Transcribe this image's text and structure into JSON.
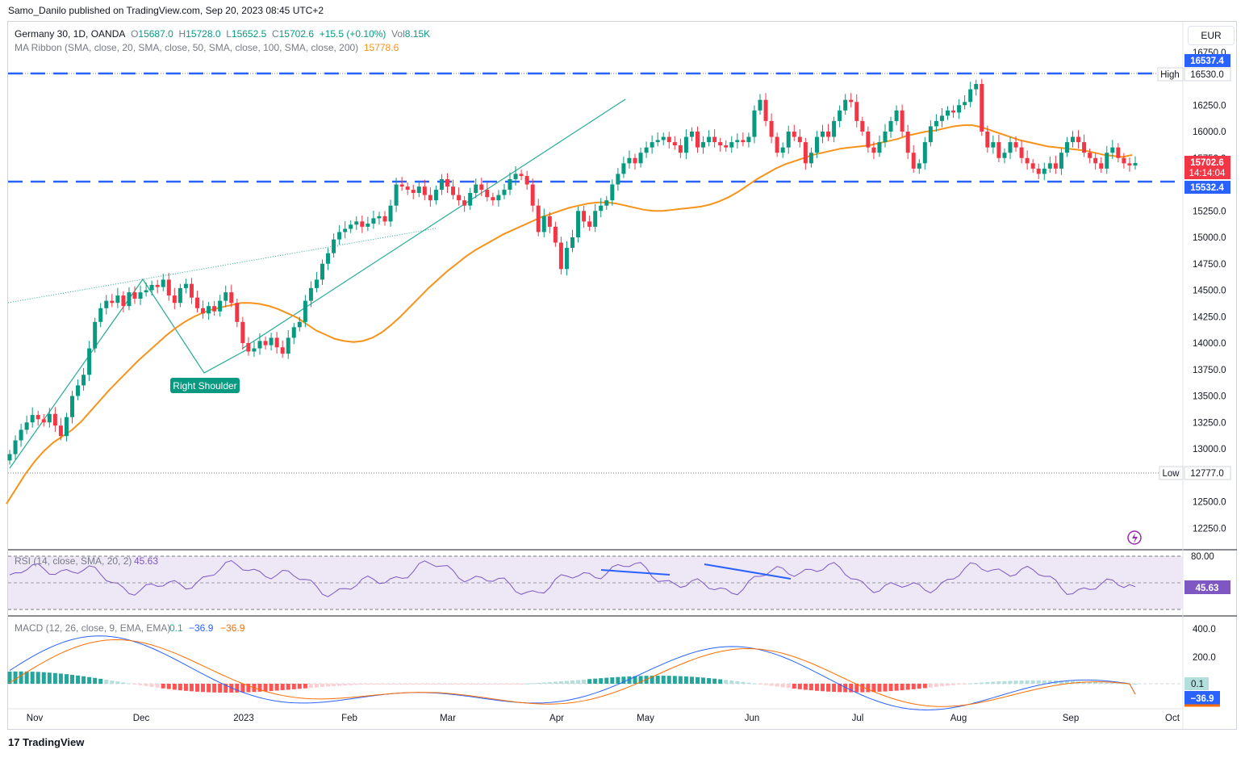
{
  "header": {
    "credit": "Samo_Danilo published on TradingView.com, Sep 20, 2023 08:45 UTC+2"
  },
  "main_legend": {
    "symbol": "Germany 30, 1D, OANDA",
    "o_label": "O",
    "o": "15687.0",
    "h_label": "H",
    "h": "15728.0",
    "l_label": "L",
    "l": "15652.5",
    "c_label": "C",
    "c": "15702.6",
    "change": "+15.5 (+0.10%)",
    "vol_label": "Vol",
    "vol": "8.15K"
  },
  "ma_legend": {
    "label": "MA Ribbon (SMA, close, 20, SMA, close, 50, SMA, close, 100, SMA, close, 200)",
    "value": "15778.6"
  },
  "currency": "EUR",
  "price_axis": {
    "ticks": [
      "16750.0",
      "16250.0",
      "16000.0",
      "15750.0",
      "15250.0",
      "15000.0",
      "14750.0",
      "14500.0",
      "14250.0",
      "14000.0",
      "13750.0",
      "13500.0",
      "13250.0",
      "13000.0",
      "12500.0",
      "12250.0"
    ],
    "high_label": "High",
    "high_value": "16530.0",
    "low_label": "Low",
    "low_value": "12777.0",
    "resistance_label": "16537.4",
    "support_label": "15532.4",
    "last_price": "15702.6",
    "countdown": "14:14:04"
  },
  "annotation": {
    "right_shoulder": "Right Shoulder"
  },
  "rsi_legend": {
    "label": "RSI (14, close, SMA, 20, 2)",
    "value": "45.63"
  },
  "rsi_axis": {
    "top": "80.00",
    "badge": "45.63"
  },
  "macd_legend": {
    "label": "MACD (12, 26, close, 9, EMA, EMA)",
    "hist": "0.1",
    "macd": "−36.9",
    "signal": "−36.9"
  },
  "macd_axis": {
    "t400": "400.0",
    "t200": "200.0",
    "badge_hist": "0.1",
    "badge_macd": "−36.9"
  },
  "time_axis": [
    "Nov",
    "Dec",
    "2023",
    "Feb",
    "Mar",
    "Apr",
    "May",
    "Jun",
    "Jul",
    "Aug",
    "Sep",
    "Oct"
  ],
  "footer": {
    "brand": "TradingView",
    "logo_glyph": "17"
  },
  "colors": {
    "up": "#089981",
    "down": "#f23645",
    "ma": "#f7931a",
    "level_line": "#2962ff",
    "trendline": "#22ab94",
    "rsi": "#7e57c2",
    "rsi_band": "#ede7f6",
    "macd": "#2962ff",
    "signal": "#ff6d00"
  },
  "chart_data": {
    "type": "candlestick",
    "symbol": "Germany 30, 1D, OANDA",
    "y_range": [
      12100,
      16850
    ],
    "levels": {
      "resistance": 16537.4,
      "support": 15532.4,
      "high": 16530.0,
      "low": 12777.0
    },
    "closes": [
      12950,
      13080,
      13180,
      13250,
      13320,
      13280,
      13250,
      13330,
      13220,
      13120,
      13300,
      13500,
      13600,
      13700,
      13950,
      14200,
      14330,
      14400,
      14380,
      14450,
      14350,
      14480,
      14420,
      14480,
      14500,
      14550,
      14530,
      14600,
      14450,
      14380,
      14520,
      14560,
      14430,
      14330,
      14280,
      14350,
      14300,
      14400,
      14480,
      14380,
      14200,
      14000,
      13920,
      13950,
      14020,
      13980,
      14050,
      13960,
      13900,
      14050,
      14150,
      14200,
      14400,
      14520,
      14600,
      14750,
      14850,
      14980,
      15050,
      15080,
      15120,
      15150,
      15100,
      15130,
      15180,
      15200,
      15150,
      15300,
      15500,
      15480,
      15450,
      15420,
      15480,
      15400,
      15350,
      15450,
      15550,
      15480,
      15400,
      15350,
      15300,
      15420,
      15500,
      15450,
      15380,
      15350,
      15400,
      15450,
      15550,
      15600,
      15580,
      15500,
      15300,
      15050,
      15200,
      15100,
      14950,
      14700,
      14900,
      15000,
      15250,
      15150,
      15100,
      15250,
      15300,
      15350,
      15500,
      15600,
      15700,
      15750,
      15700,
      15800,
      15850,
      15900,
      15920,
      15950,
      15900,
      15870,
      15800,
      15950,
      16000,
      15850,
      15900,
      15950,
      15900,
      15870,
      15850,
      15900,
      15920,
      15900,
      15950,
      16200,
      16300,
      16100,
      15950,
      15800,
      15850,
      16000,
      15950,
      15900,
      15700,
      15800,
      15950,
      16000,
      15950,
      16100,
      16200,
      16300,
      16280,
      16100,
      16000,
      15850,
      15800,
      15900,
      16000,
      16100,
      16200,
      16000,
      15800,
      15650,
      15700,
      15900,
      16050,
      16100,
      16150,
      16200,
      16180,
      16250,
      16280,
      16400,
      16450,
      16000,
      15850,
      15900,
      15750,
      15800,
      15900,
      15850,
      15750,
      15700,
      15650,
      15600,
      15650,
      15700,
      15650,
      15800,
      15900,
      15950,
      15900,
      15800,
      15750,
      15700,
      15650,
      15800,
      15850,
      15750,
      15700,
      15680,
      15702.6
    ],
    "ma_values": [
      12480,
      12620,
      12760,
      12880,
      12980,
      13060,
      13120,
      13180,
      13260,
      13360,
      13460,
      13560,
      13650,
      13740,
      13830,
      13910,
      13990,
      14070,
      14140,
      14200,
      14250,
      14290,
      14320,
      14340,
      14360,
      14380,
      14380,
      14370,
      14350,
      14320,
      14280,
      14240,
      14180,
      14120,
      14080,
      14040,
      14020,
      14010,
      14020,
      14050,
      14100,
      14170,
      14250,
      14340,
      14430,
      14520,
      14600,
      14680,
      14750,
      14820,
      14880,
      14930,
      14980,
      15030,
      15070,
      15110,
      15150,
      15190,
      15220,
      15250,
      15280,
      15300,
      15320,
      15330,
      15330,
      15320,
      15300,
      15280,
      15260,
      15250,
      15250,
      15260,
      15270,
      15280,
      15290,
      15310,
      15340,
      15380,
      15430,
      15490,
      15550,
      15600,
      15650,
      15690,
      15720,
      15750,
      15780,
      15800,
      15820,
      15840,
      15850,
      15860,
      15870,
      15890,
      15910,
      15930,
      15960,
      15980,
      16000,
      16010,
      16030,
      16050,
      16060,
      16060,
      16040,
      16010,
      15980,
      15950,
      15920,
      15900,
      15880,
      15860,
      15850,
      15840,
      15830,
      15820,
      15800,
      15780,
      15770,
      15760,
      15778.6
    ],
    "rsi": {
      "range": [
        20,
        80
      ],
      "last": 45.63
    },
    "macd": {
      "range": [
        -120,
        430
      ],
      "macd_last": -36.9,
      "signal_last": -36.9,
      "hist_last": 0.1
    }
  }
}
